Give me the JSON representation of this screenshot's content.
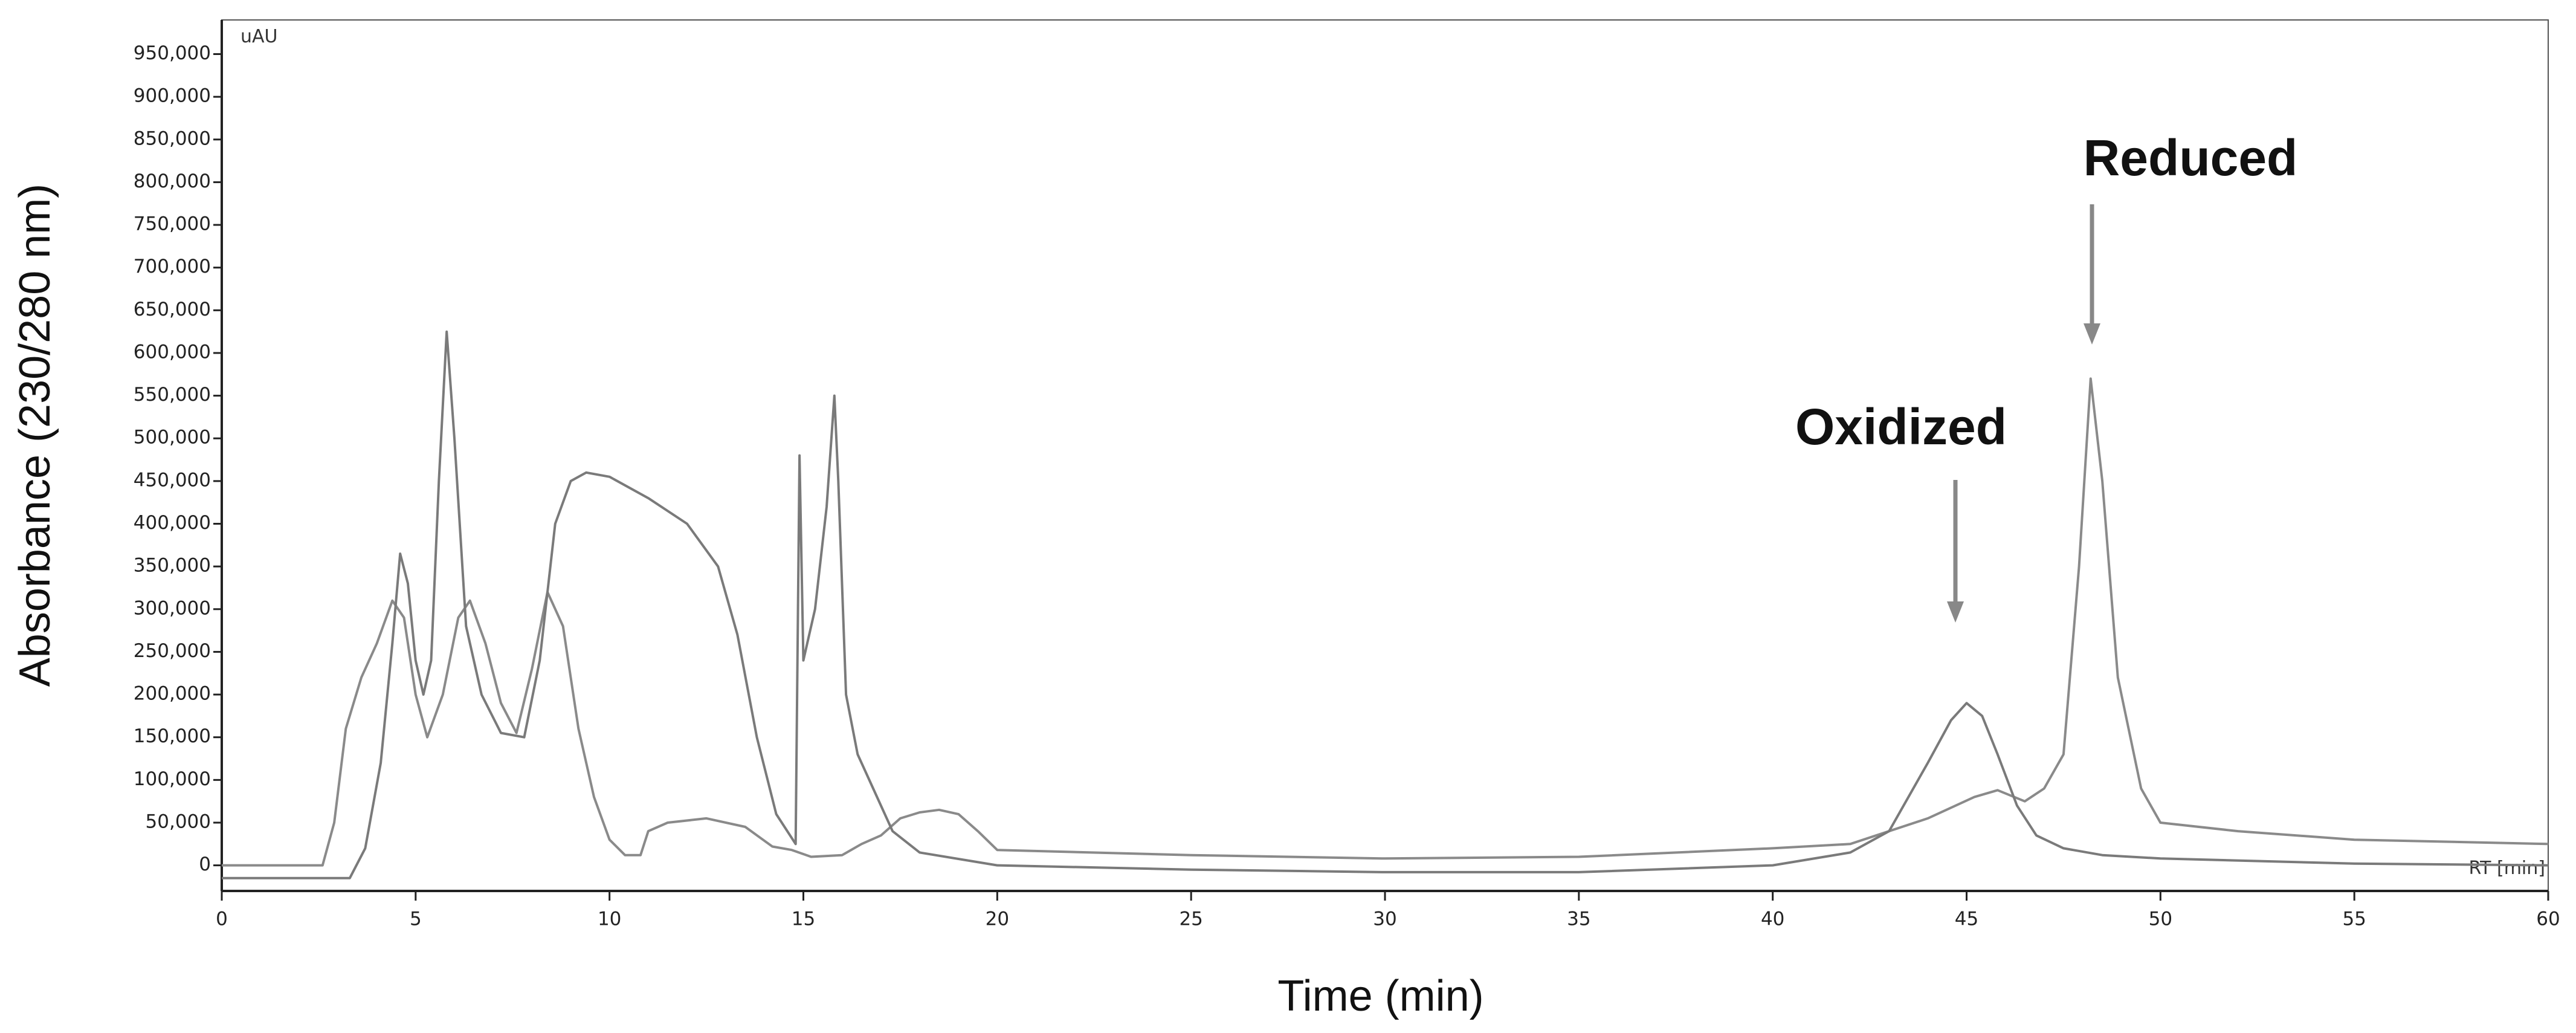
{
  "chart_data": {
    "type": "line",
    "x_label": "Time (min)",
    "y_label": "Absorbance (230/280 nm)",
    "y_unit": "uAU",
    "x_unit": "RT [min]",
    "annotations": [
      "Oxidized",
      "Reduced"
    ],
    "xlim": [
      0,
      60
    ],
    "xticks": [
      0,
      5,
      10,
      15,
      20,
      25,
      30,
      35,
      40,
      45,
      50,
      55,
      60
    ],
    "ylim": [
      -30000,
      990000
    ],
    "yticks": [
      0,
      {
        "value": 50000,
        "label": "50,000"
      },
      {
        "value": 100000,
        "label": "100,000"
      },
      {
        "value": 150000,
        "label": "150,000"
      },
      {
        "value": 200000,
        "label": "200,000"
      },
      {
        "value": 250000,
        "label": "250,000"
      },
      {
        "value": 300000,
        "label": "300,000"
      },
      {
        "value": 350000,
        "label": "350,000"
      },
      {
        "value": 400000,
        "label": "400,000"
      },
      {
        "value": 450000,
        "label": "450,000"
      },
      {
        "value": 500000,
        "label": "500,000"
      },
      {
        "value": 550000,
        "label": "550,000"
      },
      {
        "value": 600000,
        "label": "600,000"
      },
      {
        "value": 650000,
        "label": "650,000"
      },
      {
        "value": 700000,
        "label": "700,000"
      },
      {
        "value": 750000,
        "label": "750,000"
      },
      {
        "value": 800000,
        "label": "800,000"
      },
      {
        "value": 850000,
        "label": "850,000"
      },
      {
        "value": 900000,
        "label": "900,000"
      },
      {
        "value": 950000,
        "label": "950,000"
      }
    ],
    "series": [
      {
        "color": "#8a8a8a",
        "x": [
          0,
          2.6,
          2.9,
          3.2,
          3.6,
          4.0,
          4.4,
          4.7,
          5.0,
          5.3,
          5.7,
          6.1,
          6.4,
          6.8,
          7.2,
          7.6,
          8.0,
          8.4,
          8.8,
          9.2,
          9.6,
          10.0,
          10.4,
          10.8,
          11.0,
          11.5,
          12.5,
          13.5,
          14.2,
          14.7,
          15.2,
          16.0,
          16.5,
          17.0,
          17.5,
          18.0,
          18.5,
          19.0,
          19.5,
          20.0,
          25,
          30,
          35,
          40,
          42,
          44,
          45.2,
          45.8,
          46.5,
          47.0,
          47.5,
          47.9,
          48.2,
          48.5,
          48.9,
          49.5,
          50,
          52,
          55,
          60
        ],
        "values": [
          0,
          0,
          50000,
          160000,
          220000,
          260000,
          310000,
          290000,
          200000,
          150000,
          200000,
          290000,
          310000,
          260000,
          190000,
          155000,
          230000,
          320000,
          280000,
          160000,
          80000,
          30000,
          12000,
          12000,
          40000,
          50000,
          55000,
          45000,
          22000,
          18000,
          10000,
          12000,
          25000,
          35000,
          55000,
          62000,
          65000,
          60000,
          40000,
          18000,
          12000,
          8000,
          10000,
          20000,
          25000,
          55000,
          80000,
          88000,
          75000,
          90000,
          130000,
          350000,
          570000,
          450000,
          220000,
          90000,
          50000,
          40000,
          30000,
          25000
        ]
      },
      {
        "color": "#7a7a7a",
        "x": [
          0,
          3.3,
          3.7,
          4.1,
          4.4,
          4.6,
          4.8,
          5.0,
          5.2,
          5.4,
          5.6,
          5.8,
          6.0,
          6.3,
          6.7,
          7.2,
          7.8,
          8.2,
          8.6,
          9.0,
          9.4,
          10,
          11,
          12,
          12.8,
          13.3,
          13.8,
          14.3,
          14.8,
          14.9,
          15.0,
          15.1,
          15.3,
          15.6,
          15.8,
          15.9,
          16.1,
          16.4,
          16.8,
          17.3,
          18,
          20,
          25,
          30,
          35,
          40,
          42,
          43,
          44,
          44.6,
          45.0,
          45.4,
          45.8,
          46.3,
          46.8,
          47.5,
          48.5,
          50,
          55,
          60
        ],
        "values": [
          -15000,
          -15000,
          20000,
          120000,
          260000,
          365000,
          330000,
          240000,
          200000,
          240000,
          450000,
          625000,
          500000,
          280000,
          200000,
          155000,
          150000,
          240000,
          400000,
          450000,
          460000,
          455000,
          430000,
          400000,
          350000,
          270000,
          150000,
          60000,
          25000,
          480000,
          240000,
          260000,
          300000,
          420000,
          550000,
          450000,
          200000,
          130000,
          90000,
          40000,
          15000,
          0,
          -5000,
          -8000,
          -8000,
          0,
          15000,
          40000,
          120000,
          170000,
          190000,
          175000,
          130000,
          70000,
          35000,
          20000,
          12000,
          8000,
          2000,
          0
        ]
      }
    ]
  }
}
